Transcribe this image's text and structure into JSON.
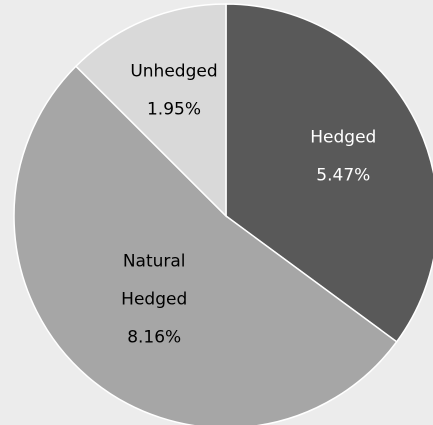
{
  "chart_data": {
    "type": "pie",
    "title": "",
    "slices": [
      {
        "name": "Hedged",
        "value": 5.47,
        "display": "5.47%",
        "color": "#595959",
        "label_color": "#ffffff",
        "label_lines": [
          "Hedged"
        ]
      },
      {
        "name": "Natural Hedged",
        "value": 8.16,
        "display": "8.16%",
        "color": "#a6a6a6",
        "label_color": "#000000",
        "label_lines": [
          "Natural",
          "Hedged"
        ]
      },
      {
        "name": "Unhedged",
        "value": 1.95,
        "display": "1.95%",
        "color": "#d9d9d9",
        "label_color": "#000000",
        "label_lines": [
          "Unhedged"
        ]
      }
    ],
    "start_angle_deg": 0,
    "direction": "clockwise",
    "border_color": "#ffffff",
    "legend": "none"
  },
  "background": "#ececec"
}
